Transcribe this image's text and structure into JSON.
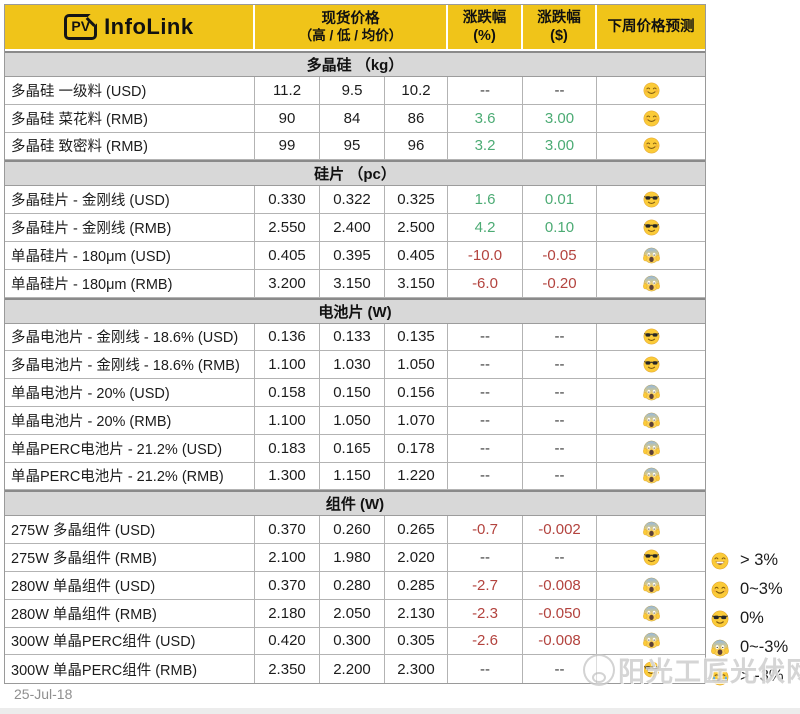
{
  "header": {
    "logo": {
      "pv": "PV",
      "infolink": "InfoLink"
    },
    "columns": {
      "spot_price": "现货价格",
      "spot_price_sub": "（高 / 低 / 均价）",
      "change_pct_line1": "涨跌幅",
      "change_pct_line2": "(%)",
      "change_usd_line1": "涨跌幅",
      "change_usd_line2": "($)",
      "forecast": "下周价格预测"
    }
  },
  "sections": [
    {
      "title": "多晶硅 （kg）",
      "rows": [
        {
          "name": "多晶硅 一级料 (USD)",
          "high": "11.2",
          "low": "9.5",
          "avg": "10.2",
          "pct": "--",
          "usd": "--",
          "dir": "none",
          "emoji": "smile"
        },
        {
          "name": "多晶硅 菜花料 (RMB)",
          "high": "90",
          "low": "84",
          "avg": "86",
          "pct": "3.6",
          "usd": "3.00",
          "dir": "up",
          "emoji": "smile"
        },
        {
          "name": "多晶硅 致密料 (RMB)",
          "high": "99",
          "low": "95",
          "avg": "96",
          "pct": "3.2",
          "usd": "3.00",
          "dir": "up",
          "emoji": "smile"
        }
      ]
    },
    {
      "title": "硅片 （pc）",
      "rows": [
        {
          "name": "多晶硅片 - 金刚线 (USD)",
          "high": "0.330",
          "low": "0.322",
          "avg": "0.325",
          "pct": "1.6",
          "usd": "0.01",
          "dir": "up",
          "emoji": "cool"
        },
        {
          "name": "多晶硅片 - 金刚线 (RMB)",
          "high": "2.550",
          "low": "2.400",
          "avg": "2.500",
          "pct": "4.2",
          "usd": "0.10",
          "dir": "up",
          "emoji": "cool"
        },
        {
          "name": "单晶硅片 - 180μm (USD)",
          "high": "0.405",
          "low": "0.395",
          "avg": "0.405",
          "pct": "-10.0",
          "usd": "-0.05",
          "dir": "down",
          "emoji": "scream"
        },
        {
          "name": "单晶硅片 - 180μm (RMB)",
          "high": "3.200",
          "low": "3.150",
          "avg": "3.150",
          "pct": "-6.0",
          "usd": "-0.20",
          "dir": "down",
          "emoji": "scream"
        }
      ]
    },
    {
      "title": "电池片 (W)",
      "rows": [
        {
          "name": "多晶电池片 - 金刚线 - 18.6% (USD)",
          "high": "0.136",
          "low": "0.133",
          "avg": "0.135",
          "pct": "--",
          "usd": "--",
          "dir": "none",
          "emoji": "cool"
        },
        {
          "name": "多晶电池片 - 金刚线 - 18.6% (RMB)",
          "high": "1.100",
          "low": "1.030",
          "avg": "1.050",
          "pct": "--",
          "usd": "--",
          "dir": "none",
          "emoji": "cool"
        },
        {
          "name": "单晶电池片 - 20% (USD)",
          "high": "0.158",
          "low": "0.150",
          "avg": "0.156",
          "pct": "--",
          "usd": "--",
          "dir": "none",
          "emoji": "scream"
        },
        {
          "name": "单晶电池片 - 20% (RMB)",
          "high": "1.100",
          "low": "1.050",
          "avg": "1.070",
          "pct": "--",
          "usd": "--",
          "dir": "none",
          "emoji": "scream"
        },
        {
          "name": "单晶PERC电池片 - 21.2% (USD)",
          "high": "0.183",
          "low": "0.165",
          "avg": "0.178",
          "pct": "--",
          "usd": "--",
          "dir": "none",
          "emoji": "scream"
        },
        {
          "name": "单晶PERC电池片 - 21.2% (RMB)",
          "high": "1.300",
          "low": "1.150",
          "avg": "1.220",
          "pct": "--",
          "usd": "--",
          "dir": "none",
          "emoji": "scream"
        }
      ]
    },
    {
      "title": "组件 (W)",
      "rows": [
        {
          "name": "275W 多晶组件 (USD)",
          "high": "0.370",
          "low": "0.260",
          "avg": "0.265",
          "pct": "-0.7",
          "usd": "-0.002",
          "dir": "down",
          "emoji": "scream"
        },
        {
          "name": "275W 多晶组件 (RMB)",
          "high": "2.100",
          "low": "1.980",
          "avg": "2.020",
          "pct": "--",
          "usd": "--",
          "dir": "none",
          "emoji": "cool"
        },
        {
          "name": "280W 单晶组件 (USD)",
          "high": "0.370",
          "low": "0.280",
          "avg": "0.285",
          "pct": "-2.7",
          "usd": "-0.008",
          "dir": "down",
          "emoji": "scream"
        },
        {
          "name": "280W 单晶组件 (RMB)",
          "high": "2.180",
          "low": "2.050",
          "avg": "2.130",
          "pct": "-2.3",
          "usd": "-0.050",
          "dir": "down",
          "emoji": "scream"
        },
        {
          "name": "300W 单晶PERC组件 (USD)",
          "high": "0.420",
          "low": "0.300",
          "avg": "0.305",
          "pct": "-2.6",
          "usd": "-0.008",
          "dir": "down",
          "emoji": "scream"
        },
        {
          "name": "300W 单晶PERC组件 (RMB)",
          "high": "2.350",
          "low": "2.200",
          "avg": "2.300",
          "pct": "--",
          "usd": "--",
          "dir": "none",
          "emoji": "cool"
        }
      ]
    }
  ],
  "legend": [
    {
      "emoji": "laugh",
      "label": "> 3%"
    },
    {
      "emoji": "smile",
      "label": "0~3%"
    },
    {
      "emoji": "cool",
      "label": "0%"
    },
    {
      "emoji": "scream",
      "label": "0~-3%"
    },
    {
      "emoji": "cry",
      "label": "> -3%"
    }
  ],
  "watermark": {
    "text": "阳光工匠光伏网"
  },
  "footer": {
    "date": "25-Jul-18"
  },
  "colors": {
    "header_yellow": "#F0C419",
    "positive_green": "#4CAB74",
    "negative_red": "#B3433E",
    "section_gray": "#D8D8D8"
  }
}
